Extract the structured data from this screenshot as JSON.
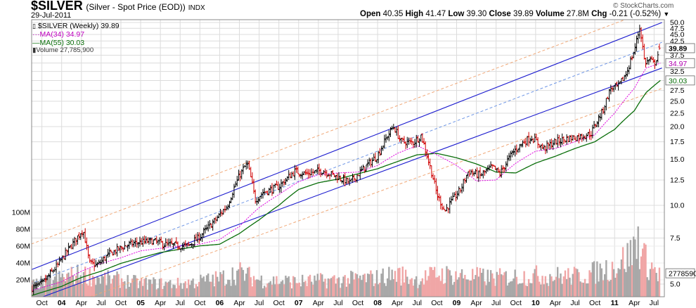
{
  "header": {
    "symbol": "$SILVER",
    "name": "(Silver - Spot Price (EOD))",
    "exchange": "INDX",
    "date": "29-Jul-2011",
    "watermark": "© StockCharts.com",
    "ohlc": {
      "open_label": "Open",
      "open": "40.35",
      "high_label": "High",
      "high": "41.47",
      "low_label": "Low",
      "low": "39.30",
      "close_label": "Close",
      "close": "39.89",
      "volume_label": "Volume",
      "volume": "27.8M",
      "chg_label": "Chg",
      "chg": "-0.21 (-0.52%)"
    }
  },
  "legend": {
    "price": "$SILVER (Weekly) 39.89",
    "ma34": "MA(34) 34.97",
    "ma55": "MA(55) 30.03",
    "volume": "Volume 27,785,900"
  },
  "colors": {
    "channel": "#1c1ccf",
    "channel_mid": "#6e96e6",
    "outer": "#f0a878",
    "ma34": "#e000e0",
    "ma55": "#0a6e0a",
    "up": "#000000",
    "down": "#d00000",
    "vol_up": "#a8a8a8",
    "vol_down": "#f0a6a6",
    "grid": "#dcdcdc"
  },
  "chart_data": {
    "type": "line",
    "title": "$SILVER (Silver - Spot Price (EOD)) Weekly",
    "xlabel": "",
    "ylabel": "",
    "scale": "log",
    "ylim": [
      4.4,
      52
    ],
    "y_ticks": [
      "5.0",
      "7.5",
      "10.0",
      "12.5",
      "15.0",
      "17.5",
      "20.0",
      "22.5",
      "25.0",
      "27.5",
      "30.0",
      "32.5",
      "35.0",
      "37.5",
      "40.0",
      "42.5",
      "45.0",
      "47.5",
      "50.0"
    ],
    "volume_ticks": [
      "20M",
      "40M",
      "60M",
      "80M",
      "100M"
    ],
    "last_labels": {
      "close": "39.89",
      "ma34": "34.97",
      "ma55": "30.03",
      "volume": "27785900"
    },
    "x_ticks": [
      {
        "label": "Oct",
        "x": 2003.75
      },
      {
        "label": "04",
        "x": 2004.0,
        "bold": true
      },
      {
        "label": "Apr",
        "x": 2004.25
      },
      {
        "label": "Jul",
        "x": 2004.5
      },
      {
        "label": "Oct",
        "x": 2004.75
      },
      {
        "label": "05",
        "x": 2005.0,
        "bold": true
      },
      {
        "label": "Apr",
        "x": 2005.25
      },
      {
        "label": "Jul",
        "x": 2005.5
      },
      {
        "label": "Oct",
        "x": 2005.75
      },
      {
        "label": "06",
        "x": 2006.0,
        "bold": true
      },
      {
        "label": "Apr",
        "x": 2006.25
      },
      {
        "label": "Jul",
        "x": 2006.5
      },
      {
        "label": "Oct",
        "x": 2006.75
      },
      {
        "label": "07",
        "x": 2007.0,
        "bold": true
      },
      {
        "label": "Apr",
        "x": 2007.25
      },
      {
        "label": "Jul",
        "x": 2007.5
      },
      {
        "label": "Oct",
        "x": 2007.75
      },
      {
        "label": "08",
        "x": 2008.0,
        "bold": true
      },
      {
        "label": "Apr",
        "x": 2008.25
      },
      {
        "label": "Jul",
        "x": 2008.5
      },
      {
        "label": "Oct",
        "x": 2008.75
      },
      {
        "label": "09",
        "x": 2009.0,
        "bold": true
      },
      {
        "label": "Apr",
        "x": 2009.25
      },
      {
        "label": "Jul",
        "x": 2009.5
      },
      {
        "label": "Oct",
        "x": 2009.75
      },
      {
        "label": "10",
        "x": 2010.0,
        "bold": true
      },
      {
        "label": "Apr",
        "x": 2010.25
      },
      {
        "label": "Jul",
        "x": 2010.5
      },
      {
        "label": "Oct",
        "x": 2010.75
      },
      {
        "label": "11",
        "x": 2011.0,
        "bold": true
      },
      {
        "label": "Apr",
        "x": 2011.25
      },
      {
        "label": "Jul",
        "x": 2011.5
      }
    ],
    "price_anchors": [
      [
        2003.6,
        4.8
      ],
      [
        2003.75,
        5.0
      ],
      [
        2003.95,
        5.9
      ],
      [
        2004.15,
        7.2
      ],
      [
        2004.27,
        8.1
      ],
      [
        2004.35,
        6.0
      ],
      [
        2004.45,
        5.9
      ],
      [
        2004.6,
        6.5
      ],
      [
        2004.8,
        7.0
      ],
      [
        2004.95,
        7.2
      ],
      [
        2005.15,
        7.3
      ],
      [
        2005.3,
        7.1
      ],
      [
        2005.5,
        7.0
      ],
      [
        2005.6,
        7.0
      ],
      [
        2005.75,
        7.6
      ],
      [
        2005.95,
        8.8
      ],
      [
        2006.1,
        10.0
      ],
      [
        2006.25,
        13.0
      ],
      [
        2006.35,
        14.5
      ],
      [
        2006.45,
        10.5
      ],
      [
        2006.55,
        11.2
      ],
      [
        2006.75,
        11.8
      ],
      [
        2006.95,
        13.5
      ],
      [
        2007.1,
        13.2
      ],
      [
        2007.3,
        13.6
      ],
      [
        2007.5,
        12.8
      ],
      [
        2007.65,
        12.2
      ],
      [
        2007.8,
        13.6
      ],
      [
        2008.0,
        15.5
      ],
      [
        2008.15,
        19.0
      ],
      [
        2008.2,
        20.0
      ],
      [
        2008.3,
        17.5
      ],
      [
        2008.45,
        17.4
      ],
      [
        2008.55,
        18.5
      ],
      [
        2008.65,
        14.5
      ],
      [
        2008.75,
        11.0
      ],
      [
        2008.85,
        9.5
      ],
      [
        2008.95,
        10.5
      ],
      [
        2009.05,
        11.5
      ],
      [
        2009.15,
        13.5
      ],
      [
        2009.3,
        13.0
      ],
      [
        2009.45,
        14.0
      ],
      [
        2009.55,
        13.2
      ],
      [
        2009.7,
        15.8
      ],
      [
        2009.85,
        17.5
      ],
      [
        2009.95,
        18.2
      ],
      [
        2010.1,
        16.5
      ],
      [
        2010.25,
        17.5
      ],
      [
        2010.4,
        18.0
      ],
      [
        2010.55,
        18.3
      ],
      [
        2010.7,
        18.8
      ],
      [
        2010.85,
        23.0
      ],
      [
        2010.95,
        28.0
      ],
      [
        2011.05,
        28.5
      ],
      [
        2011.15,
        32.0
      ],
      [
        2011.25,
        39.0
      ],
      [
        2011.32,
        48.0
      ],
      [
        2011.38,
        35.0
      ],
      [
        2011.45,
        36.0
      ],
      [
        2011.5,
        34.5
      ],
      [
        2011.58,
        39.89
      ]
    ],
    "ma34_anchors": [
      [
        2003.6,
        4.7
      ],
      [
        2004.0,
        5.1
      ],
      [
        2004.25,
        5.6
      ],
      [
        2004.5,
        6.0
      ],
      [
        2004.75,
        6.3
      ],
      [
        2005.0,
        6.7
      ],
      [
        2005.5,
        7.0
      ],
      [
        2005.75,
        7.1
      ],
      [
        2006.0,
        7.4
      ],
      [
        2006.25,
        8.3
      ],
      [
        2006.5,
        9.8
      ],
      [
        2006.75,
        11.0
      ],
      [
        2007.0,
        12.3
      ],
      [
        2007.25,
        13.1
      ],
      [
        2007.5,
        13.3
      ],
      [
        2007.75,
        13.4
      ],
      [
        2008.0,
        14.2
      ],
      [
        2008.25,
        15.8
      ],
      [
        2008.5,
        16.9
      ],
      [
        2008.75,
        15.6
      ],
      [
        2009.0,
        14.2
      ],
      [
        2009.25,
        12.4
      ],
      [
        2009.5,
        12.5
      ],
      [
        2009.75,
        14.5
      ],
      [
        2010.0,
        16.1
      ],
      [
        2010.25,
        16.5
      ],
      [
        2010.5,
        17.5
      ],
      [
        2010.75,
        18.6
      ],
      [
        2011.0,
        22.5
      ],
      [
        2011.25,
        28.0
      ],
      [
        2011.4,
        33.5
      ],
      [
        2011.58,
        34.97
      ]
    ],
    "ma55_anchors": [
      [
        2003.6,
        4.5
      ],
      [
        2004.0,
        4.9
      ],
      [
        2004.25,
        5.3
      ],
      [
        2004.5,
        5.6
      ],
      [
        2004.75,
        6.0
      ],
      [
        2005.0,
        6.3
      ],
      [
        2005.25,
        6.6
      ],
      [
        2005.5,
        6.8
      ],
      [
        2005.75,
        7.0
      ],
      [
        2006.0,
        7.1
      ],
      [
        2006.25,
        7.8
      ],
      [
        2006.5,
        8.8
      ],
      [
        2006.75,
        10.0
      ],
      [
        2007.0,
        11.5
      ],
      [
        2007.25,
        12.2
      ],
      [
        2007.5,
        12.6
      ],
      [
        2007.75,
        13.2
      ],
      [
        2008.0,
        13.8
      ],
      [
        2008.25,
        14.7
      ],
      [
        2008.5,
        15.6
      ],
      [
        2008.75,
        15.8
      ],
      [
        2009.0,
        15.2
      ],
      [
        2009.25,
        14.4
      ],
      [
        2009.5,
        13.4
      ],
      [
        2009.75,
        13.3
      ],
      [
        2010.0,
        14.5
      ],
      [
        2010.25,
        15.4
      ],
      [
        2010.5,
        16.5
      ],
      [
        2010.75,
        17.5
      ],
      [
        2011.0,
        19.5
      ],
      [
        2011.25,
        23.0
      ],
      [
        2011.4,
        27.0
      ],
      [
        2011.58,
        30.03
      ]
    ],
    "volume_anchors_millions": [
      [
        2003.6,
        15
      ],
      [
        2004.0,
        25
      ],
      [
        2004.25,
        30
      ],
      [
        2004.5,
        24
      ],
      [
        2004.75,
        22
      ],
      [
        2005.0,
        18
      ],
      [
        2005.5,
        17
      ],
      [
        2006.0,
        24
      ],
      [
        2006.25,
        32
      ],
      [
        2006.5,
        22
      ],
      [
        2007.0,
        20
      ],
      [
        2007.5,
        22
      ],
      [
        2008.0,
        25
      ],
      [
        2008.25,
        30
      ],
      [
        2008.5,
        22
      ],
      [
        2008.75,
        30
      ],
      [
        2009.0,
        28
      ],
      [
        2009.5,
        25
      ],
      [
        2010.0,
        28
      ],
      [
        2010.5,
        27
      ],
      [
        2010.75,
        32
      ],
      [
        2011.0,
        40
      ],
      [
        2011.2,
        55
      ],
      [
        2011.3,
        75
      ],
      [
        2011.4,
        45
      ],
      [
        2011.58,
        27.8
      ]
    ],
    "channel_lines": [
      {
        "name": "channel-upper",
        "style": "solid",
        "points": [
          [
            2003.5,
            5.5
          ],
          [
            2011.6,
            50.0
          ]
        ]
      },
      {
        "name": "channel-lower",
        "style": "solid",
        "points": [
          [
            2003.7,
            4.4
          ],
          [
            2011.6,
            33.5
          ]
        ]
      },
      {
        "name": "channel-mid",
        "style": "dashed",
        "points": [
          [
            2003.6,
            5.0
          ],
          [
            2011.6,
            42.0
          ]
        ]
      },
      {
        "name": "outer-upper",
        "style": "dashed",
        "points": [
          [
            2003.5,
            6.9
          ],
          [
            2011.6,
            58.0
          ]
        ]
      },
      {
        "name": "outer-lower",
        "style": "dashed",
        "points": [
          [
            2004.3,
            4.4
          ],
          [
            2011.6,
            28.0
          ]
        ]
      }
    ]
  }
}
